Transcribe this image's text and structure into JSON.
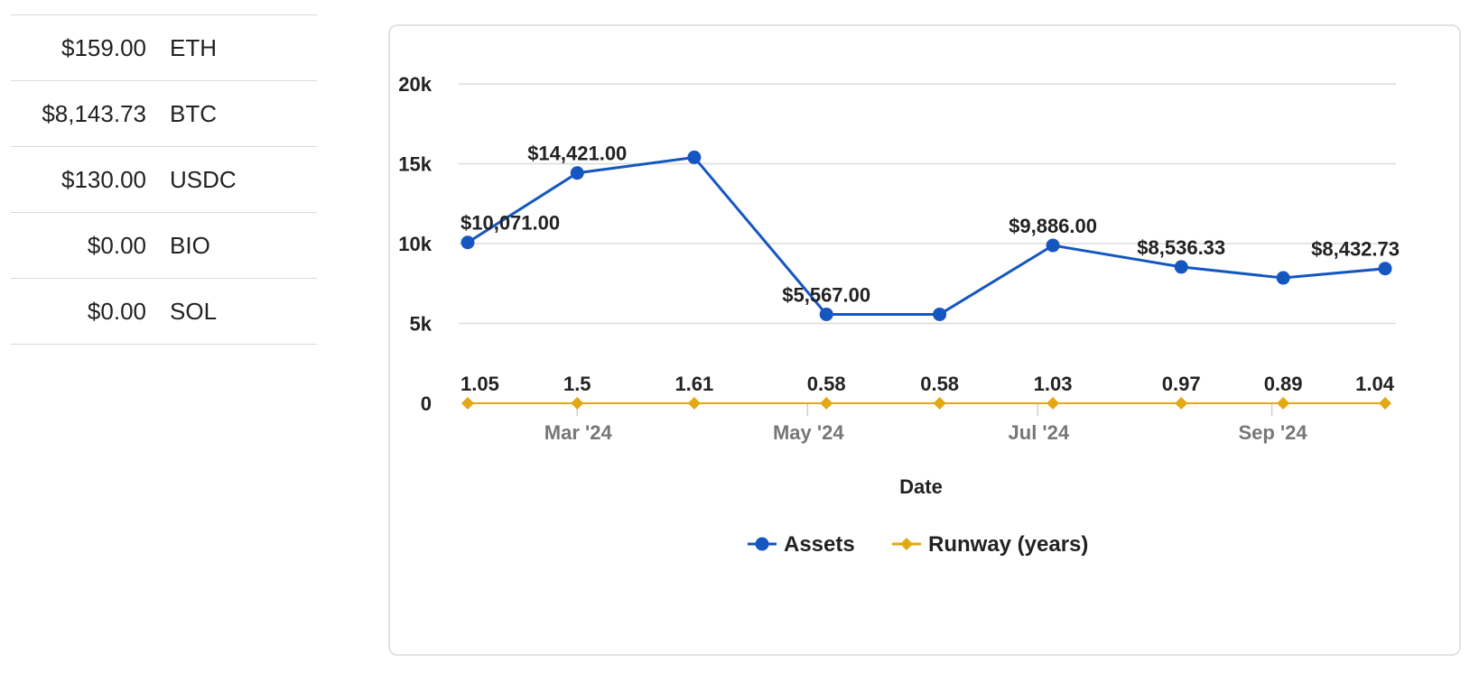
{
  "holdings": [
    {
      "amount": "$159.00",
      "symbol": "ETH"
    },
    {
      "amount": "$8,143.73",
      "symbol": "BTC"
    },
    {
      "amount": "$130.00",
      "symbol": "USDC"
    },
    {
      "amount": "$0.00",
      "symbol": "BIO"
    },
    {
      "amount": "$0.00",
      "symbol": "SOL"
    }
  ],
  "chart_data": {
    "type": "line",
    "xlabel": "Date",
    "ylabel": "",
    "ylim": [
      0,
      20000
    ],
    "y_ticks": [
      "0",
      "5k",
      "10k",
      "15k",
      "20k"
    ],
    "x_ticks": [
      "Mar '24",
      "May '24",
      "Jul '24",
      "Sep '24"
    ],
    "grid": true,
    "legend_position": "bottom",
    "x": [
      "2024-02-01",
      "2024-03-01",
      "2024-04-01",
      "2024-05-06",
      "2024-06-05",
      "2024-07-05",
      "2024-08-08",
      "2024-09-04",
      "2024-10-01"
    ],
    "series": [
      {
        "name": "Assets",
        "color": "#1556c0",
        "marker": "circle",
        "values": [
          10071,
          14421,
          15400,
          5567,
          5567,
          9886,
          8536.33,
          7850,
          8432.73
        ],
        "labels": [
          "$10,071.00",
          "$14,421.00",
          "",
          "$5,567.00",
          "",
          "$9,886.00",
          "$8,536.33",
          "",
          "$8,432.73"
        ]
      },
      {
        "name": "Runway (years)",
        "color": "#e3a812",
        "marker": "diamond",
        "values": [
          1.05,
          1.5,
          1.61,
          0.58,
          0.58,
          1.03,
          0.97,
          0.89,
          1.04
        ],
        "labels": [
          "1.05",
          "1.5",
          "1.61",
          "0.58",
          "0.58",
          "1.03",
          "0.97",
          "0.89",
          "1.04"
        ]
      }
    ]
  }
}
